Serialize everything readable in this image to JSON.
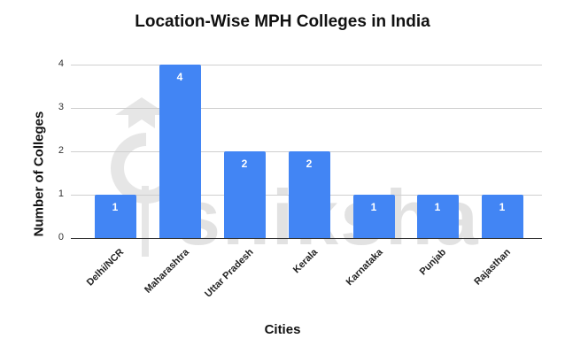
{
  "chart_data": {
    "type": "bar",
    "title": "Location-Wise MPH Colleges in India",
    "xlabel": "Cities",
    "ylabel": "Number of Colleges",
    "categories": [
      "Delhi/NCR",
      "Maharashtra",
      "Uttar Pradesh",
      "Kerala",
      "Karnataka",
      "Punjab",
      "Rajasthan"
    ],
    "values": [
      1,
      4,
      2,
      2,
      1,
      1,
      1
    ],
    "data_labels": [
      "1",
      "4",
      "2",
      "2",
      "1",
      "1",
      "1"
    ],
    "yticks": [
      "0",
      "1",
      "2",
      "3",
      "4"
    ],
    "ylim": [
      0,
      4
    ],
    "grid": true,
    "legend": "none",
    "bar_color": "#4285f4"
  },
  "watermark": "shiksha"
}
